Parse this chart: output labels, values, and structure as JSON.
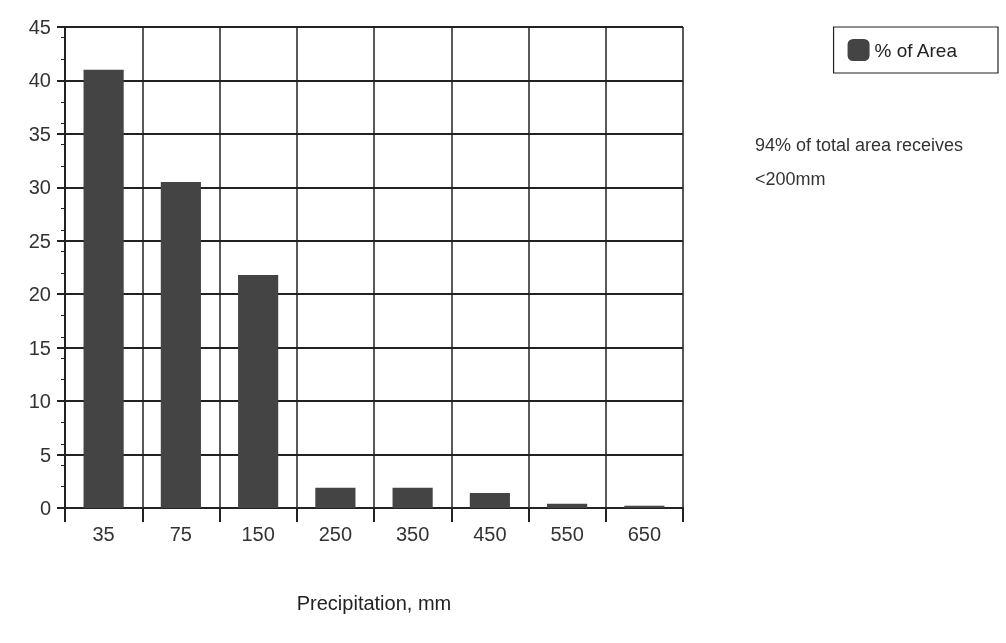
{
  "chart_data": {
    "type": "bar",
    "xlabel": "Precipitation, mm",
    "categories": [
      "35",
      "75",
      "150",
      "250",
      "350",
      "450",
      "550",
      "650"
    ],
    "series": [
      {
        "name": "% of Area",
        "color": "#444444",
        "values": [
          41,
          30.5,
          21.8,
          1.9,
          1.9,
          1.4,
          0.4,
          0.2
        ]
      }
    ],
    "ylim": [
      0,
      45
    ],
    "yticks": [
      0,
      5,
      10,
      15,
      20,
      25,
      30,
      35,
      40,
      45
    ],
    "grid": true,
    "legend": "top right",
    "annotations": [
      "94% of total area receives <200mm"
    ]
  }
}
